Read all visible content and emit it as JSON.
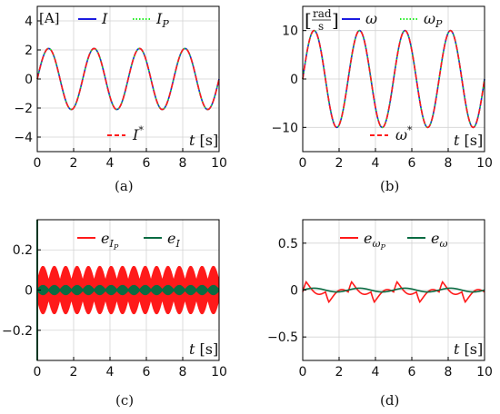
{
  "colors": {
    "blue": "#1b1be0",
    "green_dotted": "#22ee22",
    "red": "#ff1a1a",
    "dark_green": "#0a6b42",
    "grid": "#d3d3d3",
    "axis": "#000000"
  },
  "chart_data": [
    {
      "id": "a",
      "type": "line",
      "caption": "(a)",
      "unit_label": "[A]",
      "xlabel": "t [s]",
      "ylabel": "",
      "xlim": [
        0,
        10
      ],
      "ylim": [
        -5,
        5
      ],
      "xticks": [
        0,
        2,
        4,
        6,
        8,
        10
      ],
      "yticks": [
        -4,
        -2,
        0,
        2,
        4
      ],
      "grid": true,
      "legend": "top and bottom-center",
      "series": [
        {
          "name": "I",
          "color": "#1b1be0",
          "style": "solid",
          "amplitude": 2.1,
          "period": 2.5
        },
        {
          "name": "I_P",
          "color": "#22ee22",
          "style": "dotted",
          "amplitude": 2.1,
          "period": 2.5
        },
        {
          "name": "I*",
          "color": "#ff1a1a",
          "style": "dashed",
          "amplitude": 2.1,
          "period": 2.5
        }
      ]
    },
    {
      "id": "b",
      "type": "line",
      "caption": "(b)",
      "unit_label": "[rad/s]",
      "xlabel": "t [s]",
      "ylabel": "",
      "xlim": [
        0,
        10
      ],
      "ylim": [
        -15,
        15
      ],
      "xticks": [
        0,
        2,
        4,
        6,
        8,
        10
      ],
      "yticks": [
        -10,
        0,
        10
      ],
      "grid": true,
      "legend": "top and bottom-center",
      "series": [
        {
          "name": "ω",
          "color": "#1b1be0",
          "style": "solid",
          "amplitude": 10,
          "period": 2.5
        },
        {
          "name": "ω_P",
          "color": "#22ee22",
          "style": "dotted",
          "amplitude": 10,
          "period": 2.5
        },
        {
          "name": "ω*",
          "color": "#ff1a1a",
          "style": "dashed",
          "amplitude": 10,
          "period": 2.5
        }
      ]
    },
    {
      "id": "c",
      "type": "line",
      "caption": "(c)",
      "xlabel": "t [s]",
      "ylabel": "",
      "xlim": [
        0,
        10
      ],
      "ylim": [
        -0.35,
        0.35
      ],
      "xticks": [
        0,
        2,
        4,
        6,
        8,
        10
      ],
      "yticks": [
        -0.2,
        0,
        0.2
      ],
      "grid": true,
      "legend": "top",
      "series": [
        {
          "name": "e_{I_P}",
          "color": "#ff1a1a",
          "style": "solid",
          "envelope": [
            0.05,
            0.12
          ]
        },
        {
          "name": "e_I",
          "color": "#0a6b42",
          "style": "solid",
          "envelope": [
            0.005,
            0.03
          ]
        }
      ]
    },
    {
      "id": "d",
      "type": "line",
      "caption": "(d)",
      "xlabel": "t [s]",
      "ylabel": "",
      "xlim": [
        0,
        10
      ],
      "ylim": [
        -0.75,
        0.75
      ],
      "xticks": [
        0,
        2,
        4,
        6,
        8,
        10
      ],
      "yticks": [
        -0.5,
        0,
        0.5
      ],
      "grid": true,
      "legend": "top",
      "series": [
        {
          "name": "e_{ω_P}",
          "color": "#ff1a1a",
          "style": "solid",
          "amplitude": 0.12,
          "period": 2.5
        },
        {
          "name": "e_ω",
          "color": "#0a6b42",
          "style": "solid",
          "amplitude": 0.02,
          "period": 2.5
        }
      ]
    }
  ]
}
